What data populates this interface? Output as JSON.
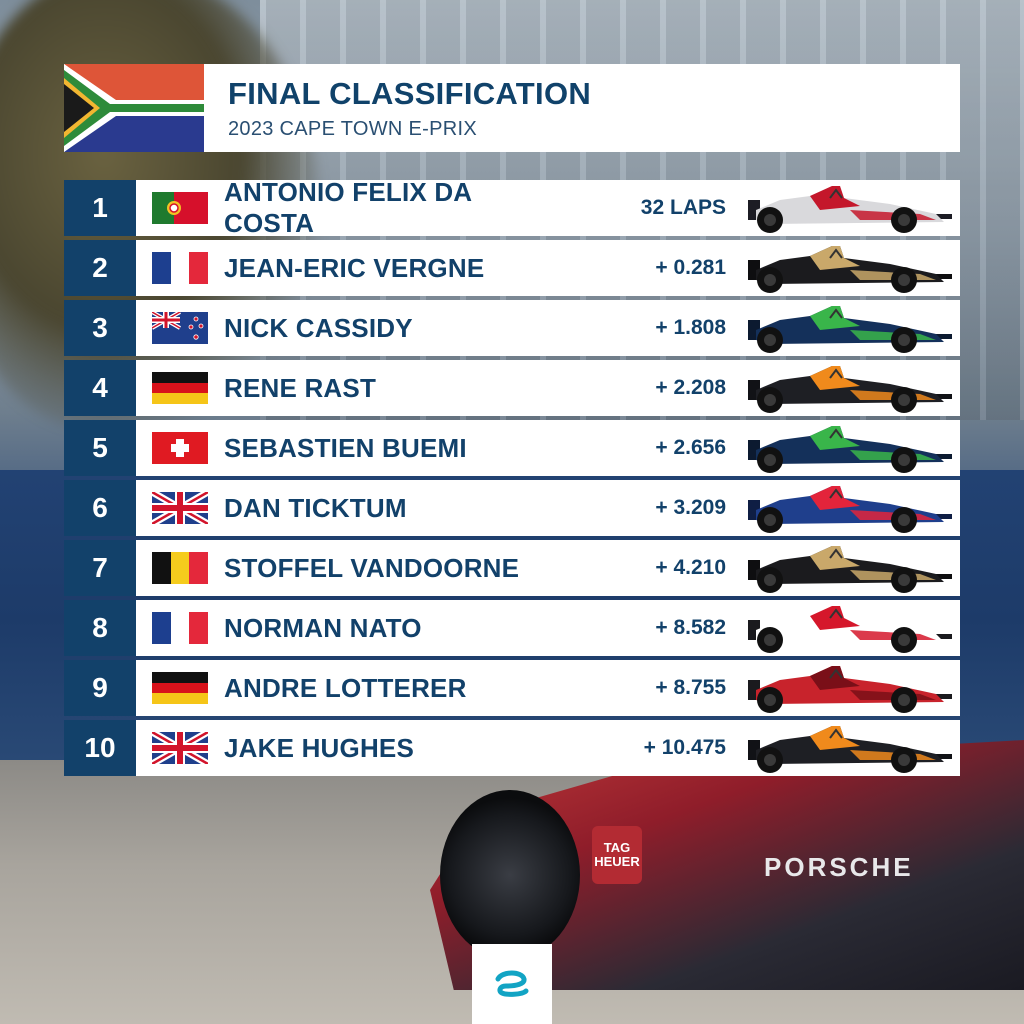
{
  "header": {
    "title": "FINAL CLASSIFICATION",
    "subtitle": "2023 CAPE TOWN E-PRIX",
    "flag_icon": "south-africa-flag-icon"
  },
  "results": [
    {
      "pos": "1",
      "driver": "ANTONIO FELIX DA COSTA",
      "gap": "32 LAPS",
      "flag": "portugal",
      "car": {
        "body": "#d9d9dc",
        "accent": "#c4172b",
        "dark": "#1c1c24"
      }
    },
    {
      "pos": "2",
      "driver": "JEAN-ERIC VERGNE",
      "gap": "+ 0.281",
      "flag": "france",
      "car": {
        "body": "#1b1b1e",
        "accent": "#c9a86a",
        "dark": "#0e0e10"
      }
    },
    {
      "pos": "3",
      "driver": "NICK CASSIDY",
      "gap": "+ 1.808",
      "flag": "new-zealand",
      "car": {
        "body": "#14305a",
        "accent": "#39b54a",
        "dark": "#0c1a30"
      }
    },
    {
      "pos": "4",
      "driver": "RENE RAST",
      "gap": "+ 2.208",
      "flag": "germany",
      "car": {
        "body": "#1e1f24",
        "accent": "#f08a1c",
        "dark": "#111216"
      }
    },
    {
      "pos": "5",
      "driver": "SEBASTIEN BUEMI",
      "gap": "+ 2.656",
      "flag": "switzerland",
      "car": {
        "body": "#14305a",
        "accent": "#39b54a",
        "dark": "#0c1a30"
      }
    },
    {
      "pos": "6",
      "driver": "DAN TICKTUM",
      "gap": "+ 3.209",
      "flag": "united-kingdom",
      "car": {
        "body": "#1f3f8c",
        "accent": "#e3243b",
        "dark": "#0f1e44"
      }
    },
    {
      "pos": "7",
      "driver": "STOFFEL VANDOORNE",
      "gap": "+ 4.210",
      "flag": "belgium",
      "car": {
        "body": "#1b1b1e",
        "accent": "#c9a86a",
        "dark": "#0e0e10"
      }
    },
    {
      "pos": "8",
      "driver": "NORMAN NATO",
      "gap": "+ 8.582",
      "flag": "france",
      "car": {
        "body": "#ffffff",
        "accent": "#d5172b",
        "dark": "#1a1a1e"
      }
    },
    {
      "pos": "9",
      "driver": "ANDRE LOTTERER",
      "gap": "+ 8.755",
      "flag": "germany",
      "car": {
        "body": "#c8232c",
        "accent": "#7a0f18",
        "dark": "#1a1a1e"
      }
    },
    {
      "pos": "10",
      "driver": "JAKE HUGHES",
      "gap": "+ 10.475",
      "flag": "united-kingdom",
      "car": {
        "body": "#1e1f24",
        "accent": "#f08a1c",
        "dark": "#111216"
      }
    }
  ],
  "background": {
    "tag_line1": "TAG",
    "tag_line2": "HEUER",
    "sponsor": "PORSCHE"
  },
  "footer": {
    "logo_icon": "formula-e-logo-icon"
  },
  "colors": {
    "navy": "#12416a",
    "white": "#ffffff"
  }
}
